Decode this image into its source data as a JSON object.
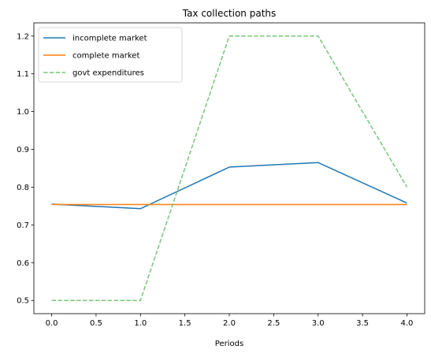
{
  "chart_data": {
    "type": "line",
    "title": "Tax collection paths",
    "xlabel": "Periods",
    "ylabel": "",
    "xlim": [
      -0.2,
      4.2
    ],
    "ylim": [
      0.465,
      1.235
    ],
    "xticks": [
      0.0,
      0.5,
      1.0,
      1.5,
      2.0,
      2.5,
      3.0,
      3.5,
      4.0
    ],
    "xtick_labels": [
      "0.0",
      "0.5",
      "1.0",
      "1.5",
      "2.0",
      "2.5",
      "3.0",
      "3.5",
      "4.0"
    ],
    "yticks": [
      0.5,
      0.6,
      0.7,
      0.8,
      0.9,
      1.0,
      1.1,
      1.2
    ],
    "ytick_labels": [
      "0.5",
      "0.6",
      "0.7",
      "0.8",
      "0.9",
      "1.0",
      "1.1",
      "1.2"
    ],
    "grid": false,
    "legend_position": "top-left",
    "x": [
      0,
      1,
      2,
      3,
      4
    ],
    "series": [
      {
        "name": "incomplete market",
        "values": [
          0.755,
          0.743,
          0.853,
          0.865,
          0.758
        ],
        "color": "#1f77b4",
        "style": "solid"
      },
      {
        "name": "complete market",
        "values": [
          0.754,
          0.754,
          0.754,
          0.754,
          0.754
        ],
        "color": "#ff7f0e",
        "style": "solid"
      },
      {
        "name": "govt expenditures",
        "values": [
          0.5,
          0.5,
          1.2,
          1.2,
          0.8
        ],
        "color": "#77c677",
        "style": "dashed"
      }
    ]
  }
}
